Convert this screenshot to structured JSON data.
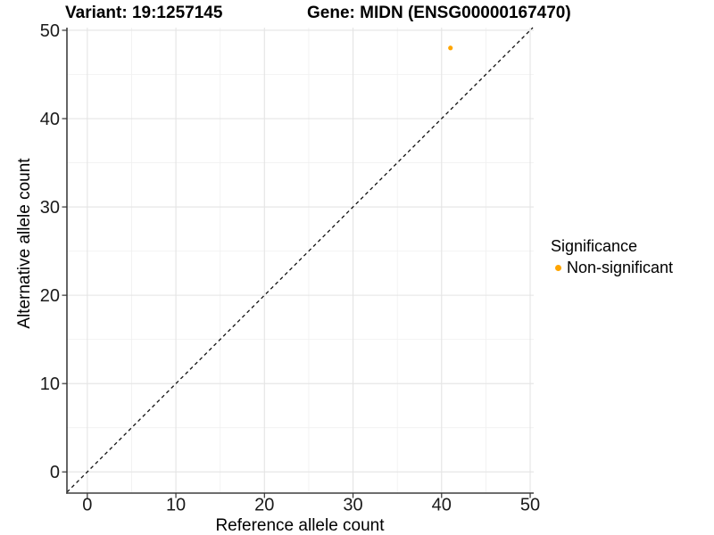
{
  "chart_data": {
    "type": "scatter",
    "titles": {
      "left": "Variant: 19:1257145",
      "right": "Gene: MIDN (ENSG00000167470)"
    },
    "xlabel": "Reference allele count",
    "ylabel": "Alternative allele count",
    "xlim": [
      -2.3,
      50.4
    ],
    "ylim": [
      -2.4,
      50.3
    ],
    "x_ticks": [
      0,
      10,
      20,
      30,
      40,
      50
    ],
    "y_ticks": [
      0,
      10,
      20,
      30,
      40,
      50
    ],
    "x_minor_ticks": [
      5,
      15,
      25,
      35,
      45
    ],
    "y_minor_ticks": [
      5,
      15,
      25,
      35,
      45
    ],
    "grid": "major and minor gridlines, light gray on white",
    "points": [
      {
        "x": 41,
        "y": 48,
        "series": "Non-significant"
      }
    ],
    "identity_line": {
      "equation": "y = x",
      "style": "dashed",
      "color": "#111111"
    },
    "legend": {
      "title": "Significance",
      "position": "right",
      "items": [
        {
          "label": "Non-significant",
          "color": "#FFA500"
        }
      ]
    },
    "colors": {
      "point": "#FFA500",
      "grid_major": "#E4E4E4",
      "grid_minor": "#F0F0F0",
      "axis_line": "#3F3F3F",
      "tick_mark": "#333333",
      "tick_text": "#1A1A1A"
    }
  }
}
